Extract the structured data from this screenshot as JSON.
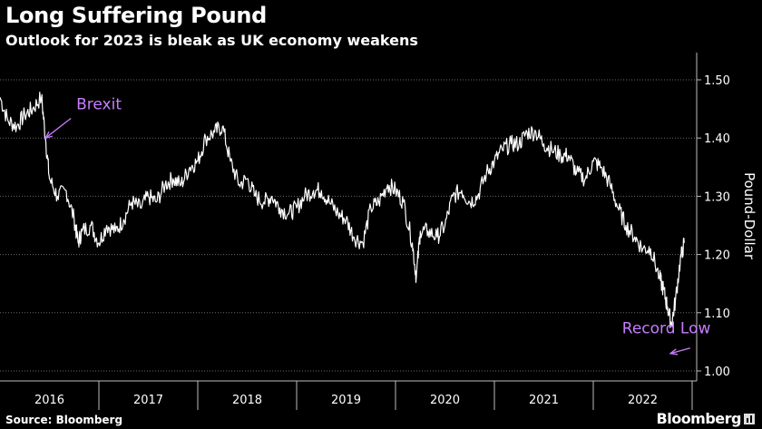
{
  "header": {
    "title": "Long Suffering Pound",
    "subtitle": "Outlook for 2023 is bleak as UK economy weakens"
  },
  "footer": {
    "source": "Source: Bloomberg",
    "brand": "Bloomberg"
  },
  "colors": {
    "background": "#000000",
    "line": "#ffffff",
    "grid": "#6a6a6a",
    "annotation": "#c77dff"
  },
  "chart_data": {
    "type": "line",
    "title": "Long Suffering Pound",
    "subtitle": "Outlook for 2023 is bleak as UK economy weakens",
    "ylabel": "Pound-Dollar",
    "y_axis_side": "right",
    "ylim": [
      1.0,
      1.5
    ],
    "yticks": [
      "1.50",
      "1.40",
      "1.30",
      "1.20",
      "1.10",
      "1.00"
    ],
    "xlim": [
      2016.0,
      2022.92
    ],
    "x_labels": [
      "2016",
      "2017",
      "2018",
      "2019",
      "2020",
      "2021",
      "2022"
    ],
    "grid": "horizontal dotted",
    "series": [
      {
        "name": "",
        "x": [
          2016.0,
          2016.08,
          2016.17,
          2016.25,
          2016.33,
          2016.42,
          2016.46,
          2016.5,
          2016.58,
          2016.67,
          2016.75,
          2016.79,
          2016.83,
          2016.92,
          2017.0,
          2017.08,
          2017.17,
          2017.25,
          2017.33,
          2017.42,
          2017.5,
          2017.58,
          2017.67,
          2017.75,
          2017.83,
          2017.92,
          2018.0,
          2018.08,
          2018.17,
          2018.25,
          2018.33,
          2018.42,
          2018.5,
          2018.58,
          2018.67,
          2018.75,
          2018.83,
          2018.92,
          2019.0,
          2019.08,
          2019.17,
          2019.25,
          2019.33,
          2019.42,
          2019.5,
          2019.58,
          2019.67,
          2019.75,
          2019.83,
          2019.92,
          2020.0,
          2020.08,
          2020.17,
          2020.21,
          2020.25,
          2020.33,
          2020.42,
          2020.5,
          2020.58,
          2020.67,
          2020.75,
          2020.83,
          2020.92,
          2021.0,
          2021.08,
          2021.17,
          2021.25,
          2021.33,
          2021.42,
          2021.5,
          2021.58,
          2021.67,
          2021.75,
          2021.83,
          2021.92,
          2022.0,
          2022.08,
          2022.17,
          2022.25,
          2022.33,
          2022.42,
          2022.5,
          2022.58,
          2022.67,
          2022.71,
          2022.75,
          2022.79,
          2022.83,
          2022.88,
          2022.92
        ],
        "y": [
          1.47,
          1.43,
          1.42,
          1.44,
          1.45,
          1.47,
          1.4,
          1.33,
          1.3,
          1.31,
          1.26,
          1.22,
          1.24,
          1.25,
          1.22,
          1.25,
          1.24,
          1.26,
          1.29,
          1.28,
          1.3,
          1.29,
          1.32,
          1.33,
          1.32,
          1.35,
          1.36,
          1.4,
          1.41,
          1.42,
          1.36,
          1.32,
          1.33,
          1.3,
          1.29,
          1.3,
          1.28,
          1.27,
          1.28,
          1.3,
          1.31,
          1.31,
          1.29,
          1.27,
          1.26,
          1.23,
          1.22,
          1.28,
          1.29,
          1.32,
          1.31,
          1.29,
          1.22,
          1.16,
          1.24,
          1.24,
          1.23,
          1.25,
          1.3,
          1.31,
          1.29,
          1.3,
          1.34,
          1.36,
          1.38,
          1.39,
          1.39,
          1.41,
          1.41,
          1.39,
          1.38,
          1.37,
          1.37,
          1.34,
          1.33,
          1.36,
          1.35,
          1.32,
          1.28,
          1.25,
          1.23,
          1.21,
          1.21,
          1.16,
          1.14,
          1.11,
          1.08,
          1.12,
          1.19,
          1.22
        ]
      }
    ],
    "annotations": [
      {
        "text": "Brexit",
        "x": 2016.46,
        "y": 1.4,
        "label_x": 2016.68,
        "label_y": 1.44
      },
      {
        "text": "Record Low",
        "x": 2022.78,
        "y": 1.03,
        "label_x": 2022.2,
        "label_y": 1.055
      }
    ]
  }
}
